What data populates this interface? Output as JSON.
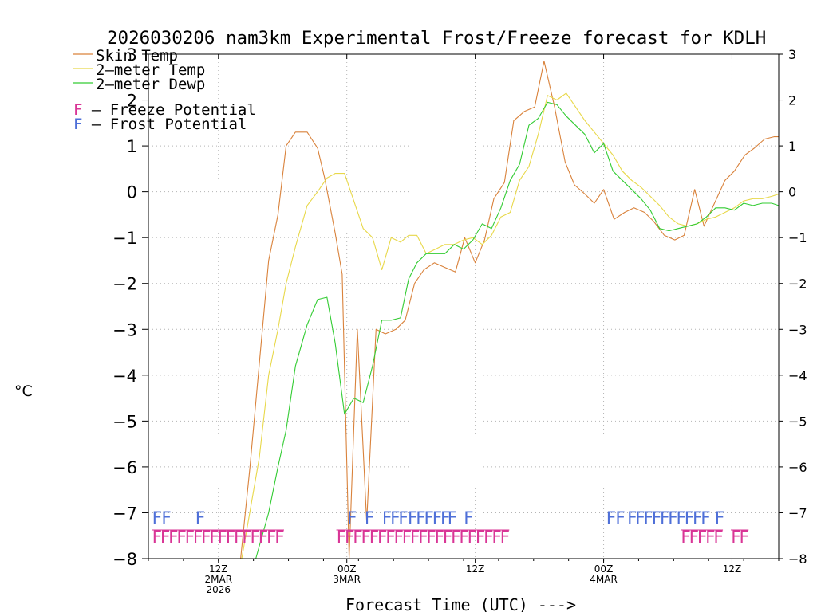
{
  "chart_data": {
    "type": "line",
    "title": "2026030206 nam3km Experimental Frost/Freeze forecast for KDLH",
    "ylabel": "°C",
    "xlabel": "Forecast Time (UTC) --->",
    "ylim": [
      -8,
      3
    ],
    "y_ticks": [
      -8,
      -7,
      -6,
      -5,
      -4,
      -3,
      -2,
      -1,
      0,
      1,
      2,
      3
    ],
    "xlim": [
      6,
      60
    ],
    "x_unit": "hours after 2026-03-02 00Z",
    "x_ticks": [
      {
        "x": 12,
        "label": "12Z",
        "sublabels": [
          "2MAR",
          "2026"
        ]
      },
      {
        "x": 23,
        "label": "00Z",
        "sublabels": [
          "3MAR"
        ]
      },
      {
        "x": 34,
        "label": "12Z",
        "sublabels": []
      },
      {
        "x": 45,
        "label": "00Z",
        "sublabels": [
          "4MAR"
        ]
      },
      {
        "x": 56,
        "label": "12Z",
        "sublabels": []
      }
    ],
    "grid": true,
    "series": [
      {
        "name": "Skin Temp",
        "color": "#d9823b",
        "x": [
          13.9,
          14.7,
          16.3,
          17.1,
          17.8,
          18.6,
          19.6,
          20.5,
          21.1,
          22.0,
          22.6,
          23.2,
          23.9,
          24.7,
          25.5,
          26.3,
          27.2,
          28.0,
          28.8,
          29.6,
          30.5,
          31.4,
          32.3,
          33.1,
          34.0,
          34.8,
          35.6,
          36.5,
          37.3,
          38.2,
          39.1,
          39.9,
          40.8,
          41.7,
          42.5,
          43.4,
          44.2,
          45.0,
          45.9,
          46.8,
          47.6,
          48.5,
          49.3,
          50.2,
          51.1,
          51.9,
          52.8,
          53.6,
          54.5,
          55.4,
          56.2,
          57.1,
          57.9,
          58.8,
          59.6,
          60.0
        ],
        "y": [
          -8.0,
          -6.0,
          -1.5,
          -0.5,
          1.0,
          1.3,
          1.3,
          0.95,
          0.3,
          -0.9,
          -1.8,
          -8.0,
          -3.0,
          -7.2,
          -3.0,
          -3.1,
          -3.0,
          -2.8,
          -2.0,
          -1.7,
          -1.55,
          -1.65,
          -1.75,
          -1.0,
          -1.55,
          -1.05,
          -0.15,
          0.2,
          1.55,
          1.75,
          1.85,
          2.85,
          1.85,
          0.65,
          0.15,
          -0.05,
          -0.25,
          0.05,
          -0.6,
          -0.45,
          -0.35,
          -0.45,
          -0.65,
          -0.95,
          -1.05,
          -0.95,
          0.05,
          -0.75,
          -0.25,
          0.25,
          0.45,
          0.8,
          0.95,
          1.15,
          1.2,
          1.2
        ]
      },
      {
        "name": "2-meter Temp",
        "color": "#e8d84a",
        "x": [
          14.0,
          15.5,
          16.3,
          17.1,
          17.8,
          18.6,
          19.6,
          20.5,
          21.3,
          22.0,
          22.8,
          23.6,
          24.4,
          25.2,
          26.0,
          26.8,
          27.6,
          28.3,
          29.0,
          29.8,
          30.6,
          31.4,
          32.2,
          33.0,
          33.8,
          34.6,
          35.4,
          36.2,
          37.0,
          37.8,
          38.6,
          39.4,
          40.2,
          41.0,
          41.8,
          42.6,
          43.4,
          44.2,
          45.0,
          45.8,
          46.6,
          47.4,
          48.2,
          49.0,
          49.8,
          50.6,
          51.4,
          52.2,
          53.0,
          53.8,
          54.6,
          55.4,
          56.2,
          57.0,
          57.8,
          58.6,
          59.4,
          60.0
        ],
        "y": [
          -8.0,
          -5.8,
          -4.0,
          -3.0,
          -2.0,
          -1.2,
          -0.3,
          0.0,
          0.3,
          0.4,
          0.4,
          -0.2,
          -0.8,
          -1.0,
          -1.7,
          -1.0,
          -1.1,
          -0.95,
          -0.95,
          -1.35,
          -1.25,
          -1.15,
          -1.15,
          -1.05,
          -1.0,
          -1.15,
          -0.95,
          -0.55,
          -0.45,
          0.25,
          0.55,
          1.25,
          2.1,
          2.0,
          2.15,
          1.85,
          1.55,
          1.3,
          1.05,
          0.8,
          0.45,
          0.25,
          0.1,
          -0.1,
          -0.3,
          -0.55,
          -0.7,
          -0.75,
          -0.7,
          -0.6,
          -0.55,
          -0.45,
          -0.35,
          -0.2,
          -0.15,
          -0.15,
          -0.1,
          -0.05
        ]
      },
      {
        "name": "2-meter Dewp",
        "color": "#33cc33",
        "x": [
          15.2,
          16.3,
          17.1,
          17.8,
          18.6,
          19.6,
          20.5,
          21.3,
          22.0,
          22.8,
          23.6,
          24.4,
          25.2,
          26.0,
          26.8,
          27.6,
          28.3,
          29.0,
          29.8,
          30.6,
          31.4,
          32.2,
          33.0,
          33.8,
          34.6,
          35.4,
          36.2,
          37.0,
          37.8,
          38.6,
          39.4,
          40.2,
          41.0,
          41.8,
          42.6,
          43.4,
          44.2,
          45.0,
          45.8,
          46.6,
          47.4,
          48.2,
          49.0,
          49.8,
          50.6,
          51.4,
          52.2,
          53.0,
          53.8,
          54.6,
          55.4,
          56.2,
          57.0,
          57.8,
          58.6,
          59.4,
          60.0
        ],
        "y": [
          -8.0,
          -7.0,
          -6.0,
          -5.2,
          -3.8,
          -2.9,
          -2.35,
          -2.3,
          -3.3,
          -4.85,
          -4.5,
          -4.6,
          -3.8,
          -2.8,
          -2.8,
          -2.75,
          -1.9,
          -1.55,
          -1.35,
          -1.35,
          -1.35,
          -1.15,
          -1.25,
          -1.05,
          -0.7,
          -0.8,
          -0.35,
          0.25,
          0.6,
          1.45,
          1.6,
          1.95,
          1.9,
          1.65,
          1.45,
          1.25,
          0.85,
          1.05,
          0.45,
          0.25,
          0.05,
          -0.15,
          -0.4,
          -0.8,
          -0.85,
          -0.8,
          -0.75,
          -0.7,
          -0.55,
          -0.35,
          -0.35,
          -0.4,
          -0.25,
          -0.3,
          -0.25,
          -0.25,
          -0.3
        ]
      }
    ],
    "frost_potential": {
      "label": "F – Frost Potential",
      "letter": "F",
      "color": "#4e6fd8",
      "x": [
        6.3,
        7.1,
        10.0,
        23.0,
        24.5,
        26.0,
        26.7,
        27.4,
        28.2,
        28.9,
        29.6,
        30.3,
        31.0,
        31.6,
        33.0,
        45.2,
        46.0,
        47.0,
        47.7,
        48.4,
        49.1,
        49.8,
        50.5,
        51.2,
        51.9,
        52.6,
        53.3,
        54.5
      ]
    },
    "freeze_potential": {
      "label": "F – Freeze Potential",
      "letter": "F",
      "color": "#d93596",
      "x": [
        6.3,
        7.0,
        7.7,
        8.4,
        9.1,
        9.8,
        10.5,
        11.2,
        11.9,
        12.6,
        13.3,
        14.0,
        14.7,
        15.4,
        16.1,
        16.8,
        22.1,
        22.8,
        23.5,
        24.2,
        24.9,
        25.6,
        26.3,
        27.0,
        27.7,
        28.4,
        29.1,
        29.8,
        30.5,
        31.2,
        31.9,
        32.6,
        33.3,
        34.0,
        34.7,
        35.4,
        36.1,
        51.6,
        52.3,
        53.0,
        53.7,
        54.4,
        55.9,
        56.6
      ]
    }
  },
  "legend": {
    "entries": [
      {
        "label": "Skin Temp",
        "color": "#d9823b"
      },
      {
        "label": "2–meter Temp",
        "color": "#e8d84a"
      },
      {
        "label": "2–meter Dewp",
        "color": "#33cc33"
      }
    ],
    "freeze_letter": "F",
    "freeze_text": " – Freeze Potential",
    "frost_letter": "F",
    "frost_text": " – Frost Potential"
  }
}
